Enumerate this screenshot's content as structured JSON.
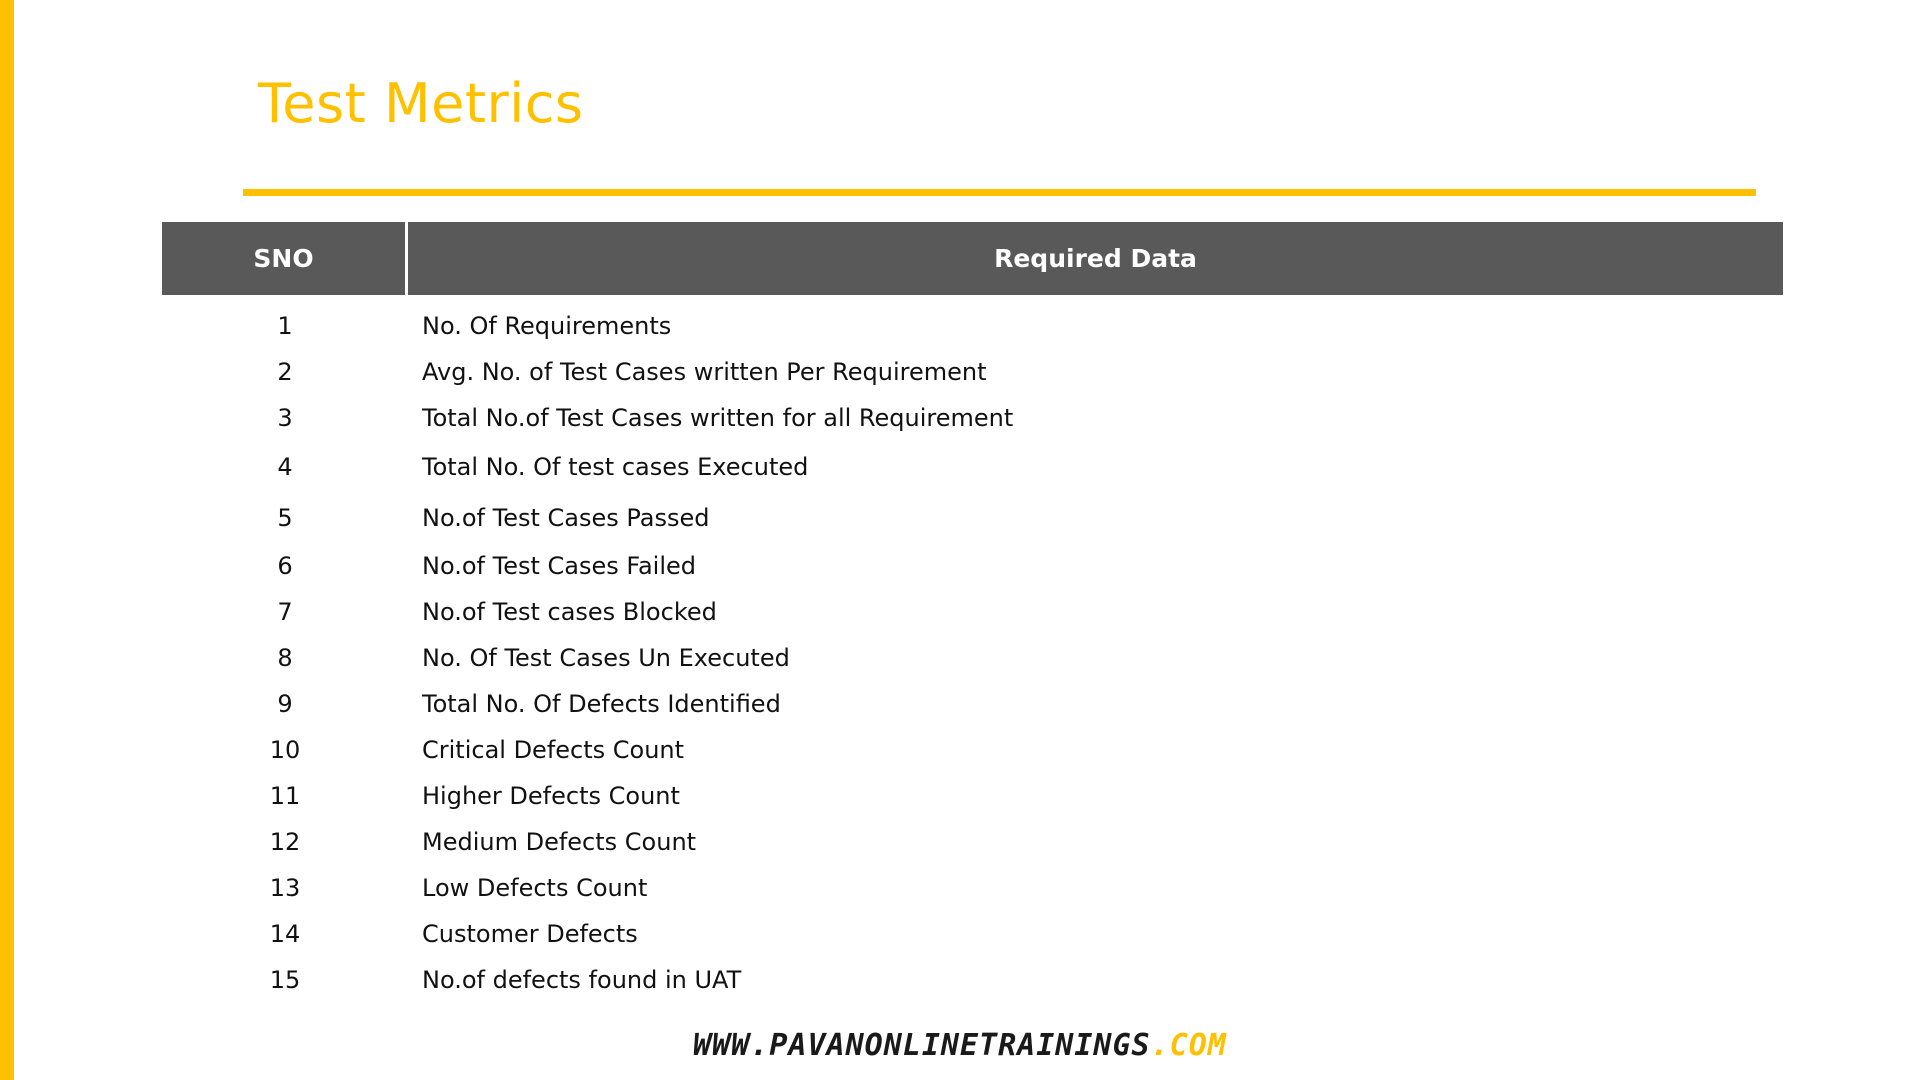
{
  "slide": {
    "title": "Test Metrics",
    "accent_color": "#FFC000",
    "header_bg": "#595959"
  },
  "table": {
    "headers": {
      "sno": "SNO",
      "data": "Required Data"
    },
    "rows": [
      {
        "sno": "1",
        "data": "No. Of Requirements"
      },
      {
        "sno": "2",
        "data": "Avg. No. of Test Cases written Per Requirement"
      },
      {
        "sno": "3",
        "data": "Total No.of Test Cases written for all Requirement"
      },
      {
        "sno": "4",
        "data": "Total No. Of test cases Executed"
      },
      {
        "sno": "5",
        "data": "No.of Test Cases Passed"
      },
      {
        "sno": "6",
        "data": "No.of Test Cases Failed"
      },
      {
        "sno": "7",
        "data": "No.of Test cases Blocked"
      },
      {
        "sno": "8",
        "data": "No. Of Test Cases Un Executed"
      },
      {
        "sno": "9",
        "data": "Total No. Of Defects Identified"
      },
      {
        "sno": "10",
        "data": "Critical Defects Count"
      },
      {
        "sno": "11",
        "data": "Higher Defects Count"
      },
      {
        "sno": "12",
        "data": "Medium Defects Count"
      },
      {
        "sno": "13",
        "data": "Low Defects Count"
      },
      {
        "sno": "14",
        "data": "Customer Defects"
      },
      {
        "sno": "15",
        "data": "No.of defects found in UAT"
      }
    ]
  },
  "footer": {
    "site": "WWW.PAVANONLINETRAININGS",
    "tld": ".COM"
  }
}
